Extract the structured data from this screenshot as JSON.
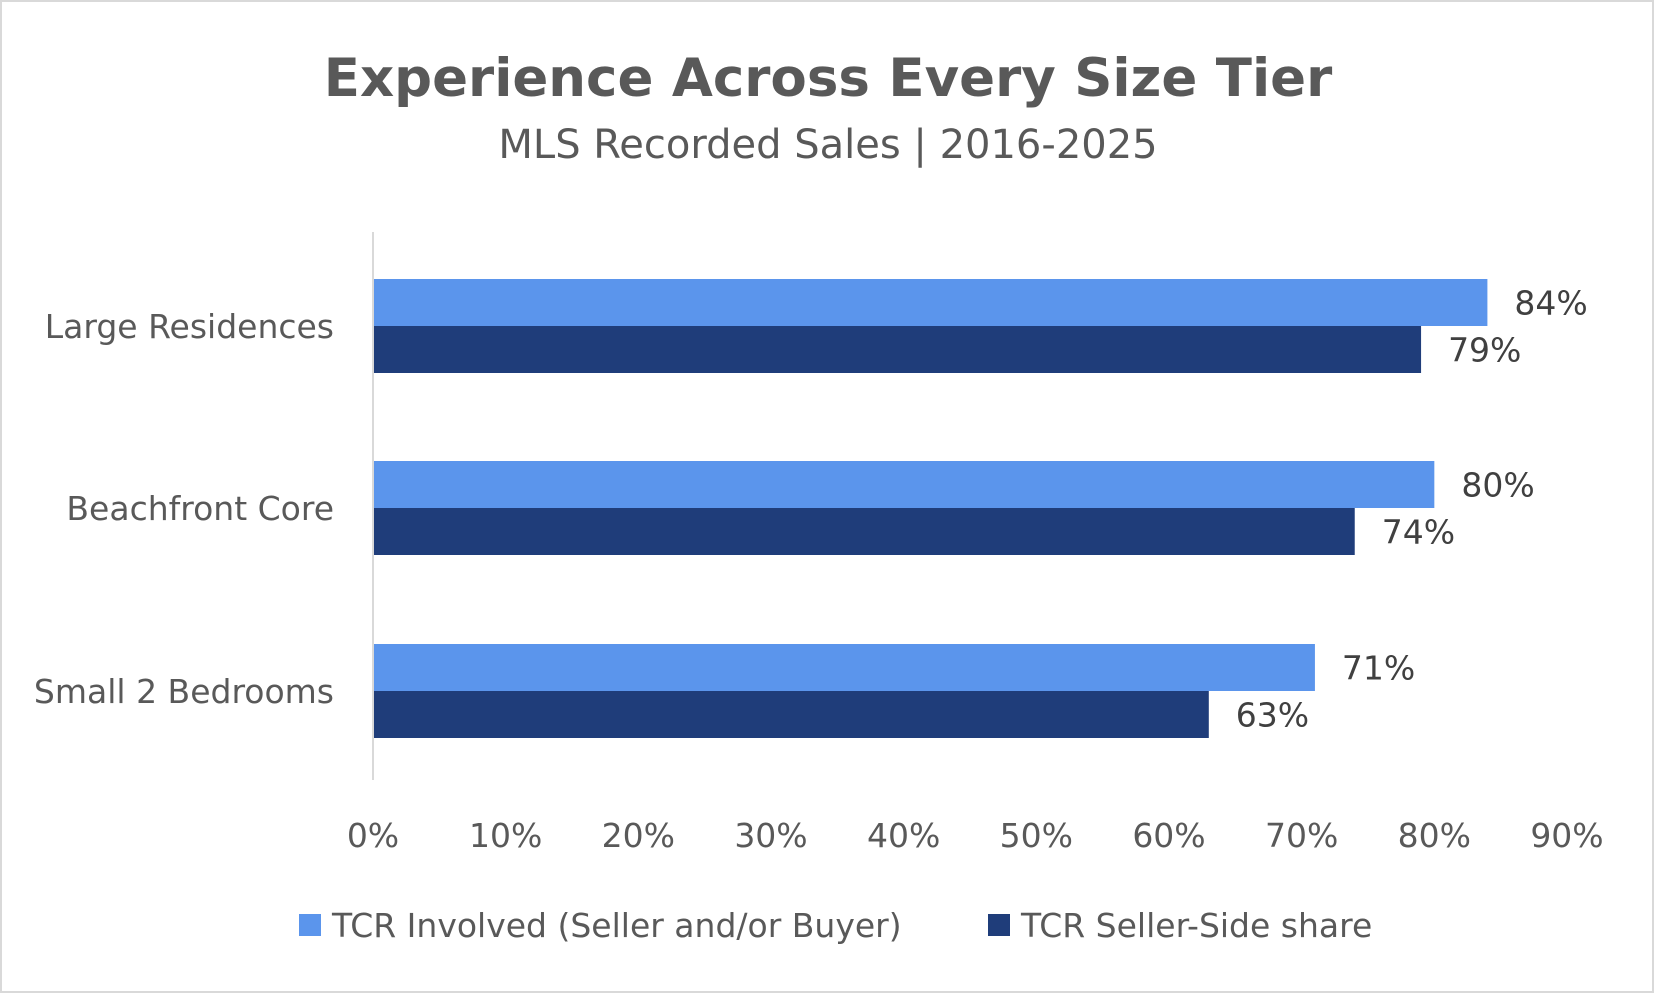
{
  "chart_data": {
    "type": "bar",
    "orientation": "horizontal",
    "title": "Experience Across Every Size Tier",
    "subtitle": "MLS Recorded Sales | 2016-2025",
    "categories": [
      "Large Residences",
      "Beachfront Core",
      "Small 2 Bedrooms"
    ],
    "series": [
      {
        "name": "TCR Involved (Seller and/or Buyer)",
        "color": "#5B95EC",
        "values": [
          84,
          80,
          71
        ],
        "labels": [
          "84%",
          "80%",
          "71%"
        ]
      },
      {
        "name": "TCR Seller-Side share",
        "color": "#1F3D7A",
        "values": [
          79,
          74,
          63
        ],
        "labels": [
          "79%",
          "74%",
          "63%"
        ]
      }
    ],
    "xlim": [
      0,
      90
    ],
    "x_ticks": [
      0,
      10,
      20,
      30,
      40,
      50,
      60,
      70,
      80,
      90
    ],
    "x_tick_labels": [
      "0%",
      "10%",
      "20%",
      "30%",
      "40%",
      "50%",
      "60%",
      "70%",
      "80%",
      "90%"
    ],
    "xlabel": "",
    "ylabel": "",
    "grid": false,
    "legend_position": "bottom-center"
  }
}
